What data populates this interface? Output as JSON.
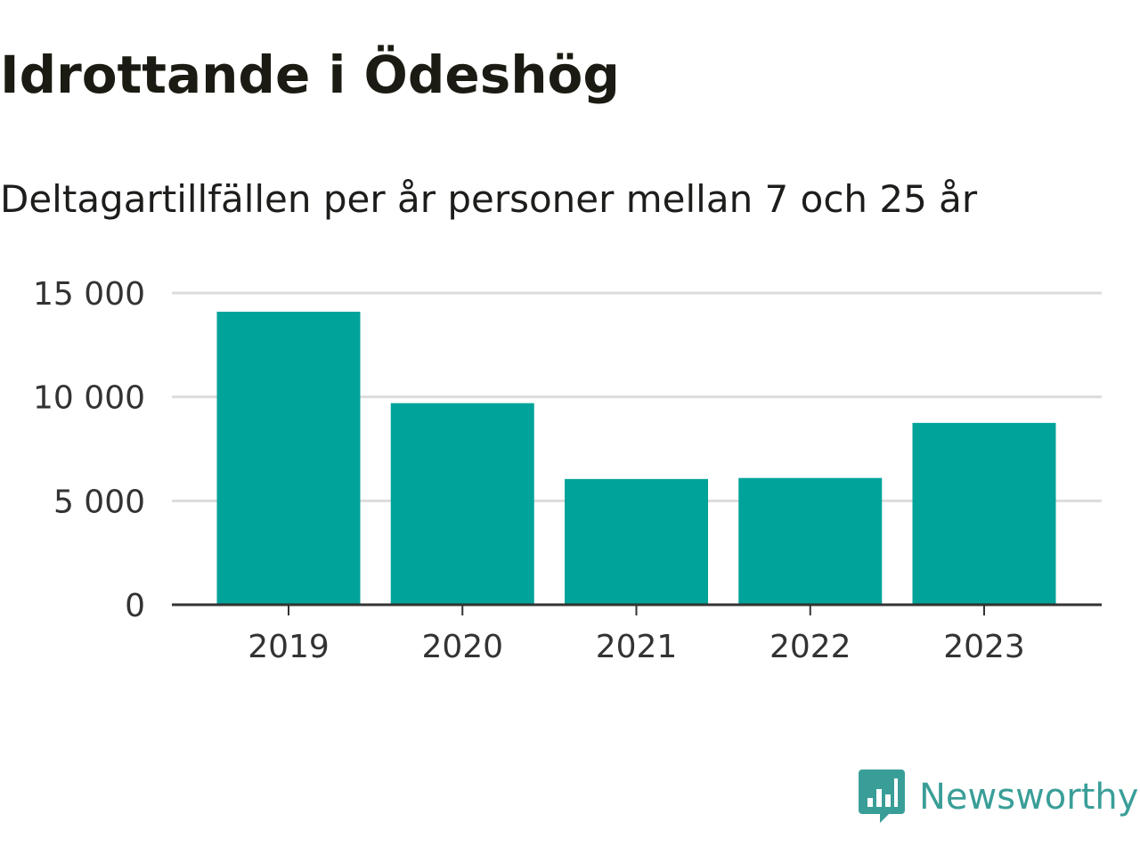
{
  "title": "Idrottande i Ödeshög",
  "subtitle": "Deltagartillfällen per år personer mellan 7 och 25 år",
  "chart_data": {
    "type": "bar",
    "categories": [
      "2019",
      "2020",
      "2021",
      "2022",
      "2023"
    ],
    "values": [
      14100,
      9700,
      6050,
      6100,
      8750
    ],
    "ylim": [
      0,
      15000
    ],
    "yticks": [
      0,
      5000,
      10000,
      15000
    ],
    "ytick_labels": [
      "0",
      "5 000",
      "10 000",
      "15 000"
    ],
    "grid": true,
    "bar_color": "#00a39a",
    "gridline_color": "#dcdcdc",
    "axis_color": "#333333"
  },
  "brand": {
    "name": "Newsworthy",
    "icon": "bar-chart-speech-bubble-icon",
    "color": "#3a9e98"
  }
}
